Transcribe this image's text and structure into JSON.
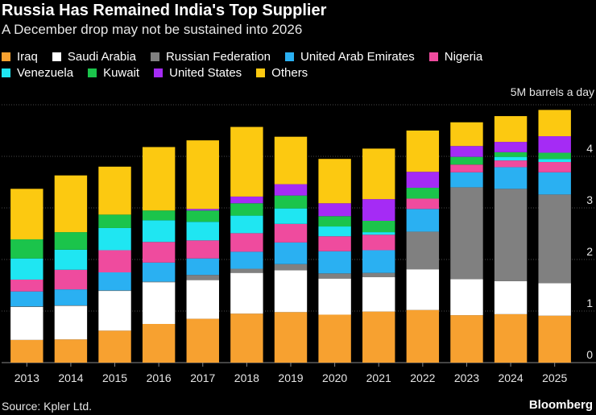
{
  "header": {
    "title": "Russia Has Remained India's Top Supplier",
    "subtitle": "A December drop may not be sustained into 2026"
  },
  "footer": {
    "source": "Source: Kpler Ltd.",
    "brand": "Bloomberg"
  },
  "chart_data": {
    "type": "bar",
    "stacked": true,
    "title": "Russia Has Remained India's Top Supplier",
    "subtitle": "A December drop may not be sustained into 2026",
    "unit_label": "5M barrels a day",
    "xlabel": "",
    "ylabel": "Million barrels a day",
    "ylim": [
      0,
      5
    ],
    "yticks": [
      "0",
      "1",
      "2",
      "3",
      "4"
    ],
    "legend_position": "top",
    "grid": true,
    "categories": [
      "2013",
      "2014",
      "2015",
      "2016",
      "2017",
      "2018",
      "2019",
      "2020",
      "2021",
      "2022",
      "2023",
      "2024",
      "2025"
    ],
    "legend_rows": [
      [
        "Iraq",
        "Saudi Arabia",
        "Russian Federation",
        "United Arab Emirates",
        "Nigeria"
      ],
      [
        "Venezuela",
        "Kuwait",
        "United States",
        "Others"
      ]
    ],
    "series": [
      {
        "name": "Iraq",
        "color": "#f7a130",
        "values": [
          0.44,
          0.45,
          0.62,
          0.75,
          0.85,
          0.95,
          0.98,
          0.93,
          0.99,
          1.02,
          0.92,
          0.94,
          0.91
        ]
      },
      {
        "name": "Saudi Arabia",
        "color": "#ffffff",
        "values": [
          0.64,
          0.65,
          0.77,
          0.81,
          0.75,
          0.79,
          0.81,
          0.7,
          0.67,
          0.79,
          0.7,
          0.64,
          0.63
        ]
      },
      {
        "name": "Russian Federation",
        "color": "#808080",
        "values": [
          0.01,
          0.01,
          0.01,
          0.01,
          0.1,
          0.08,
          0.12,
          0.1,
          0.08,
          0.73,
          1.78,
          1.79,
          1.72
        ]
      },
      {
        "name": "United Arab Emirates",
        "color": "#2ab0f2",
        "values": [
          0.29,
          0.31,
          0.35,
          0.37,
          0.32,
          0.33,
          0.42,
          0.43,
          0.44,
          0.44,
          0.29,
          0.42,
          0.43
        ]
      },
      {
        "name": "Nigeria",
        "color": "#ef4b9e",
        "values": [
          0.23,
          0.38,
          0.43,
          0.4,
          0.35,
          0.36,
          0.36,
          0.29,
          0.3,
          0.2,
          0.15,
          0.13,
          0.2
        ]
      },
      {
        "name": "Venezuela",
        "color": "#1fe6f2",
        "values": [
          0.41,
          0.39,
          0.43,
          0.42,
          0.36,
          0.34,
          0.3,
          0.19,
          0.05,
          0.0,
          0.0,
          0.07,
          0.06
        ]
      },
      {
        "name": "Kuwait",
        "color": "#1bc44b",
        "values": [
          0.37,
          0.34,
          0.26,
          0.19,
          0.22,
          0.24,
          0.25,
          0.2,
          0.22,
          0.21,
          0.15,
          0.09,
          0.12
        ]
      },
      {
        "name": "United States",
        "color": "#a52bf5",
        "values": [
          0.0,
          0.0,
          0.0,
          0.0,
          0.03,
          0.13,
          0.22,
          0.25,
          0.42,
          0.31,
          0.21,
          0.2,
          0.32
        ]
      },
      {
        "name": "Others",
        "color": "#fcc911",
        "values": [
          0.98,
          1.1,
          0.93,
          1.23,
          1.33,
          1.35,
          0.92,
          0.86,
          0.98,
          0.8,
          0.46,
          0.5,
          0.51
        ]
      }
    ]
  }
}
